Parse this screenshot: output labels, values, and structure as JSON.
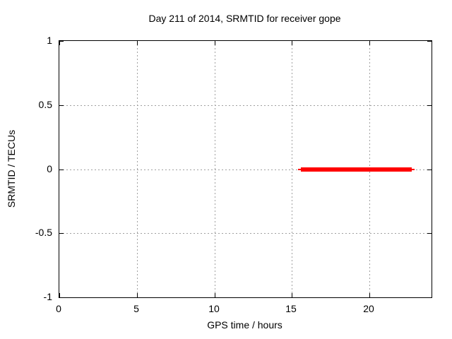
{
  "title": "Day 211 of 2014, SRMTID for receiver gope",
  "axes": {
    "x": {
      "label": "GPS time / hours",
      "min": 0,
      "max": 24,
      "ticks": [
        "0",
        "5",
        "10",
        "15",
        "20"
      ],
      "tick_values": [
        0,
        5,
        10,
        15,
        20
      ]
    },
    "y": {
      "label": "SRMTID / TECUs",
      "min": -1,
      "max": 1,
      "ticks": [
        "1",
        "0.5",
        "0",
        "-0.5",
        "-1"
      ],
      "tick_values": [
        1,
        0.5,
        0,
        -0.5,
        -1
      ]
    }
  },
  "chart_data": {
    "type": "line",
    "title": "Day 211 of 2014, SRMTID for receiver gope",
    "xlabel": "GPS time / hours",
    "ylabel": "SRMTID / TECUs",
    "xlim": [
      0,
      24
    ],
    "ylim": [
      -1,
      1
    ],
    "grid": true,
    "legend": "none",
    "series": [
      {
        "name": "SRMTID",
        "color": "#ff0000",
        "x": [
          15.4,
          22.9
        ],
        "y": [
          0,
          0
        ],
        "note": "thick flat red line at SRMTID = 0 spanning approx 15.4 to 22.9 GPS hours"
      }
    ]
  },
  "colors": {
    "background": "#ffffff",
    "text": "#000000",
    "border": "#000000",
    "grid": "#a0a0a0",
    "line": "#ff0000"
  }
}
